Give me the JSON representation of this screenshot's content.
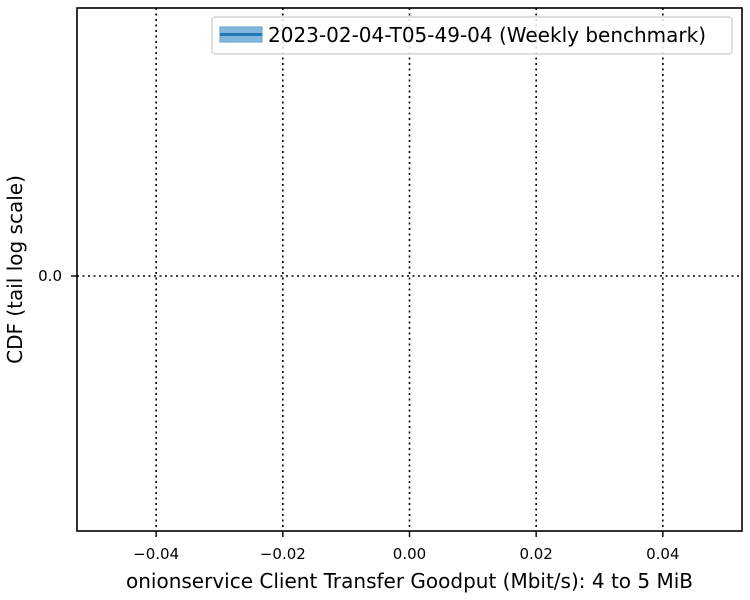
{
  "chart_data": {
    "type": "line",
    "xlabel": "onionservice Client Transfer Goodput (Mbit/s): 4 to 5 MiB",
    "ylabel": "CDF (tail log scale)",
    "x_ticks": [
      -0.04,
      -0.02,
      0.0,
      0.02,
      0.04
    ],
    "x_tick_labels": [
      "−0.04",
      "−0.02",
      "0.00",
      "0.02",
      "0.04"
    ],
    "xlim": [
      -0.0525,
      0.0525
    ],
    "y_ticks": [
      0.0
    ],
    "y_tick_labels": [
      "0.0"
    ],
    "yscale": "log (tail)",
    "grid": true,
    "grid_style": "dotted",
    "legend_position": "upper right",
    "series": [
      {
        "name": "2023-02-04-T05-49-04 (Weekly benchmark)",
        "color": "#1f77b4",
        "band_color": "#6fa8d6",
        "x": [],
        "y": []
      }
    ]
  }
}
